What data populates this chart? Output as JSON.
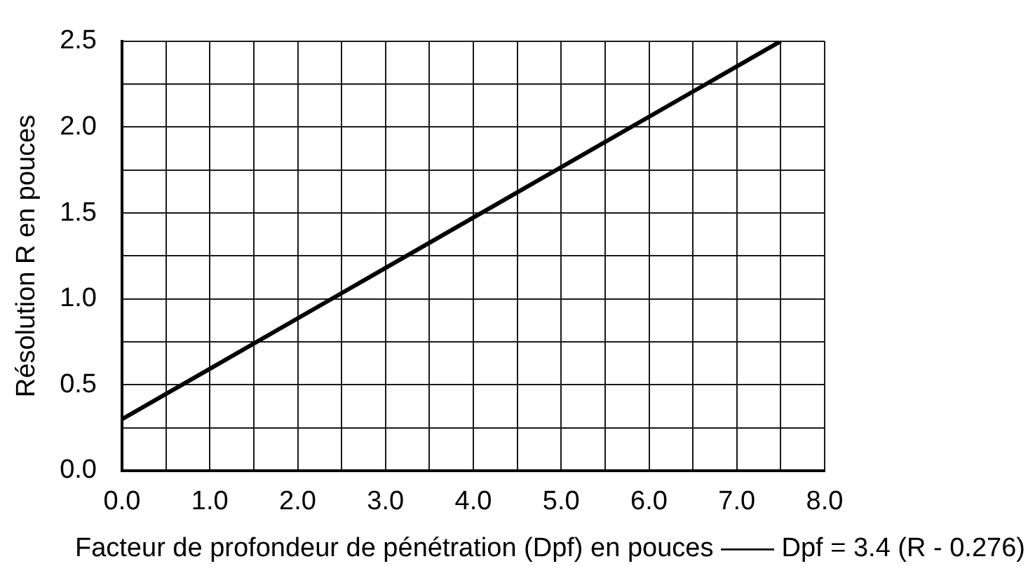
{
  "chart_data": {
    "type": "line",
    "xlabel": "Facteur de profondeur de pénétration (Dpf) en pouces —— Dpf = 3.4 (R - 0.276)",
    "ylabel": "Résolution R en pouces",
    "x": [
      0,
      7.5
    ],
    "values": [
      0.3,
      2.5
    ],
    "color": "#000000",
    "marker": "none",
    "line_style": "solid",
    "xlim": [
      0,
      8
    ],
    "xticks": [
      {
        "value": 0,
        "label": "0.0"
      },
      {
        "value": 0.5,
        "label": null
      },
      {
        "value": 1,
        "label": "1.0"
      },
      {
        "value": 1.5,
        "label": null
      },
      {
        "value": 2,
        "label": "2.0"
      },
      {
        "value": 2.5,
        "label": null
      },
      {
        "value": 3,
        "label": "3.0"
      },
      {
        "value": 3.5,
        "label": null
      },
      {
        "value": 4,
        "label": "4.0"
      },
      {
        "value": 4.5,
        "label": null
      },
      {
        "value": 5,
        "label": "5.0"
      },
      {
        "value": 5.5,
        "label": null
      },
      {
        "value": 6,
        "label": "6.0"
      },
      {
        "value": 6.5,
        "label": null
      },
      {
        "value": 7,
        "label": "7.0"
      },
      {
        "value": 7.5,
        "label": null
      },
      {
        "value": 8,
        "label": "8.0"
      }
    ],
    "ylim": [
      0,
      2.5
    ],
    "yticks": [
      {
        "value": 0,
        "label": "0.0"
      },
      {
        "value": 0.25,
        "label": null
      },
      {
        "value": 0.5,
        "label": "0.5"
      },
      {
        "value": 0.75,
        "label": null
      },
      {
        "value": 1,
        "label": "1.0"
      },
      {
        "value": 1.25,
        "label": null
      },
      {
        "value": 1.5,
        "label": "1.5"
      },
      {
        "value": 1.75,
        "label": null
      },
      {
        "value": 2,
        "label": "2.0"
      },
      {
        "value": 2.25,
        "label": null
      },
      {
        "value": 2.5,
        "label": "2.5"
      }
    ],
    "grid": true
  }
}
